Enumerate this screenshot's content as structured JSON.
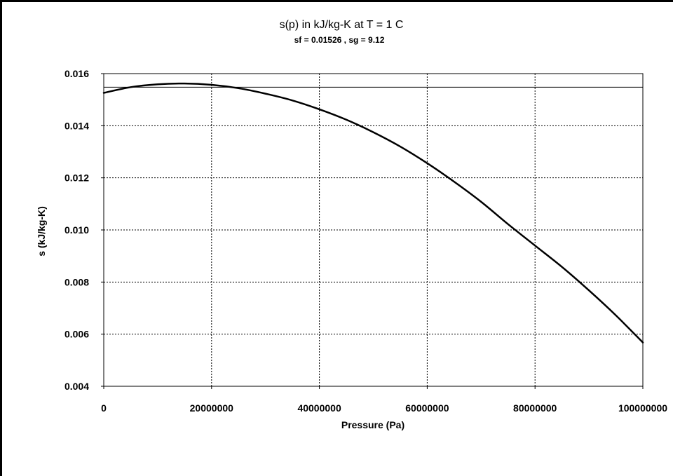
{
  "chart_data": {
    "type": "line",
    "title": "s(p) in kJ/kg-K at T = 1 C",
    "subtitle": "sf = 0.01526  , sg = 9.12",
    "xlabel": "Pressure (Pa)",
    "ylabel": "s (kJ/kg-K)",
    "xlim": [
      0,
      100000000
    ],
    "ylim": [
      0.004,
      0.016
    ],
    "x_ticks": [
      0,
      20000000,
      40000000,
      60000000,
      80000000,
      100000000
    ],
    "x_tick_labels": [
      "0",
      "20000000",
      "40000000",
      "60000000",
      "80000000",
      "100000000"
    ],
    "y_ticks": [
      0.004,
      0.006,
      0.008,
      0.01,
      0.012,
      0.014,
      0.016
    ],
    "y_tick_labels": [
      "0.004",
      "0.006",
      "0.008",
      "0.010",
      "0.012",
      "0.014",
      "0.016"
    ],
    "grid": true,
    "reference_lines": [
      {
        "orientation": "horizontal",
        "y": 0.01548
      }
    ],
    "series": [
      {
        "x": [
          0,
          5000000,
          10000000,
          15000000,
          20000000,
          25000000,
          30000000,
          35000000,
          40000000,
          45000000,
          50000000,
          55000000,
          60000000,
          65000000,
          70000000,
          75000000,
          80000000,
          85000000,
          90000000,
          95000000,
          100000000
        ],
        "values": [
          0.01526,
          0.01548,
          0.01559,
          0.01562,
          0.01557,
          0.01544,
          0.01523,
          0.01497,
          0.01463,
          0.01423,
          0.01375,
          0.0132,
          0.01256,
          0.01185,
          0.01108,
          0.01022,
          0.0094,
          0.00858,
          0.00768,
          0.00672,
          0.00568
        ]
      }
    ]
  }
}
